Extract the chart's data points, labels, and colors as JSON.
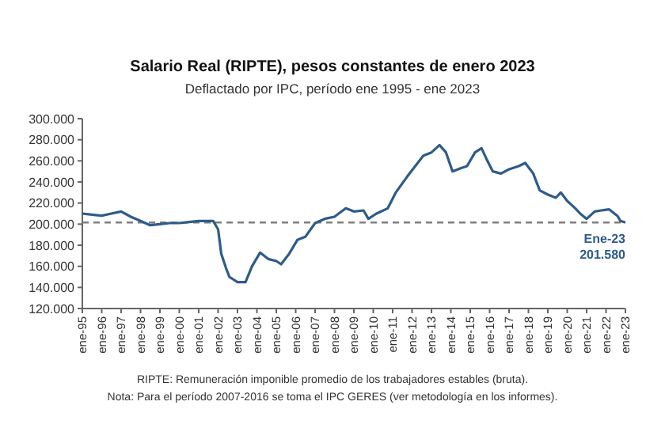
{
  "chart_data": {
    "type": "line",
    "title": "Salario Real (RIPTE), pesos constantes de enero 2023",
    "subtitle": "Deflactado por IPC, período ene 1995 - ene 2023",
    "x": [
      "1995-01",
      "1995-07",
      "1996-01",
      "1996-07",
      "1997-01",
      "1997-07",
      "1998-01",
      "1998-07",
      "1999-01",
      "1999-07",
      "2000-01",
      "2000-07",
      "2001-01",
      "2001-07",
      "2001-10",
      "2002-01",
      "2002-03",
      "2002-06",
      "2002-08",
      "2003-01",
      "2003-06",
      "2003-10",
      "2004-03",
      "2004-08",
      "2005-01",
      "2005-04",
      "2005-09",
      "2006-02",
      "2006-07",
      "2007-01",
      "2007-07",
      "2008-01",
      "2008-08",
      "2009-01",
      "2009-07",
      "2009-10",
      "2010-03",
      "2010-10",
      "2011-03",
      "2011-10",
      "2012-03",
      "2012-08",
      "2013-01",
      "2013-06",
      "2013-10",
      "2014-02",
      "2014-07",
      "2014-11",
      "2015-04",
      "2015-08",
      "2015-11",
      "2016-03",
      "2016-08",
      "2017-01",
      "2017-07",
      "2017-11",
      "2018-04",
      "2018-08",
      "2019-01",
      "2019-06",
      "2019-09",
      "2020-01",
      "2020-06",
      "2020-09",
      "2021-01",
      "2021-06",
      "2021-10",
      "2022-03",
      "2022-08",
      "2022-10",
      "2023-01"
    ],
    "series": [
      {
        "color": "#2e5c8a",
        "values": [
          210000,
          209000,
          208000,
          210000,
          212000,
          207000,
          203000,
          199000,
          200000,
          201000,
          201000,
          202000,
          203000,
          203000,
          203000,
          195000,
          172000,
          158000,
          150000,
          145000,
          145000,
          160000,
          173000,
          167000,
          165000,
          162000,
          172000,
          185000,
          188000,
          201000,
          205000,
          207000,
          215000,
          212000,
          213000,
          205000,
          210000,
          215000,
          230000,
          245000,
          255000,
          265000,
          268000,
          275000,
          268000,
          250000,
          253000,
          255000,
          268000,
          272000,
          262000,
          250000,
          248000,
          252000,
          255000,
          258000,
          248000,
          232000,
          228000,
          225000,
          230000,
          222000,
          215000,
          210000,
          205000,
          212000,
          213000,
          214000,
          208000,
          203000,
          201580
        ]
      }
    ],
    "xlim": [
      "1995-01",
      "2023-01"
    ],
    "xticks": [
      {
        "value": "1995-01",
        "label": "ene-95"
      },
      {
        "value": "1996-01",
        "label": "ene-96"
      },
      {
        "value": "1997-01",
        "label": "ene-97"
      },
      {
        "value": "1998-01",
        "label": "ene-98"
      },
      {
        "value": "1999-01",
        "label": "ene-99"
      },
      {
        "value": "2000-01",
        "label": "ene-00"
      },
      {
        "value": "2001-01",
        "label": "ene-01"
      },
      {
        "value": "2002-01",
        "label": "ene-02"
      },
      {
        "value": "2003-01",
        "label": "ene-03"
      },
      {
        "value": "2004-01",
        "label": "ene-04"
      },
      {
        "value": "2005-01",
        "label": "ene-05"
      },
      {
        "value": "2006-01",
        "label": "ene-06"
      },
      {
        "value": "2007-01",
        "label": "ene-07"
      },
      {
        "value": "2008-01",
        "label": "ene-08"
      },
      {
        "value": "2009-01",
        "label": "ene-09"
      },
      {
        "value": "2010-01",
        "label": "ene-10"
      },
      {
        "value": "2011-01",
        "label": "ene-11"
      },
      {
        "value": "2012-01",
        "label": "ene-12"
      },
      {
        "value": "2013-01",
        "label": "ene-13"
      },
      {
        "value": "2014-01",
        "label": "ene-14"
      },
      {
        "value": "2015-01",
        "label": "ene-15"
      },
      {
        "value": "2016-01",
        "label": "ene-16"
      },
      {
        "value": "2017-01",
        "label": "ene-17"
      },
      {
        "value": "2018-01",
        "label": "ene-18"
      },
      {
        "value": "2019-01",
        "label": "ene-19"
      },
      {
        "value": "2020-01",
        "label": "ene-20"
      },
      {
        "value": "2021-01",
        "label": "ene-21"
      },
      {
        "value": "2022-01",
        "label": "ene-22"
      },
      {
        "value": "2023-01",
        "label": "ene-23"
      }
    ],
    "ylim": [
      120000,
      300000
    ],
    "yticks": [
      {
        "value": 120000,
        "label": "120.000"
      },
      {
        "value": 140000,
        "label": "140.000"
      },
      {
        "value": 160000,
        "label": "160.000"
      },
      {
        "value": 180000,
        "label": "180.000"
      },
      {
        "value": 200000,
        "label": "200.000"
      },
      {
        "value": 220000,
        "label": "220.000"
      },
      {
        "value": 240000,
        "label": "240.000"
      },
      {
        "value": 260000,
        "label": "260.000"
      },
      {
        "value": 280000,
        "label": "280.000"
      },
      {
        "value": 300000,
        "label": "300.000"
      }
    ],
    "ref_lines": [
      {
        "axis": "y",
        "value": 201580,
        "color": "#7f7f7f",
        "line_style": "dashed"
      }
    ],
    "annotations": [
      {
        "text": "Ene-23\n201.580",
        "x": "2023-01",
        "y": 201580
      },
      "RIPTE: Remuneración imponible promedio de los trabajadores estables (bruta).",
      "Nota: Para el período 2007-2016 se toma el IPC GERES (ver metodología en los informes)."
    ],
    "grid": false,
    "marker": "none",
    "line_style": "solid"
  }
}
